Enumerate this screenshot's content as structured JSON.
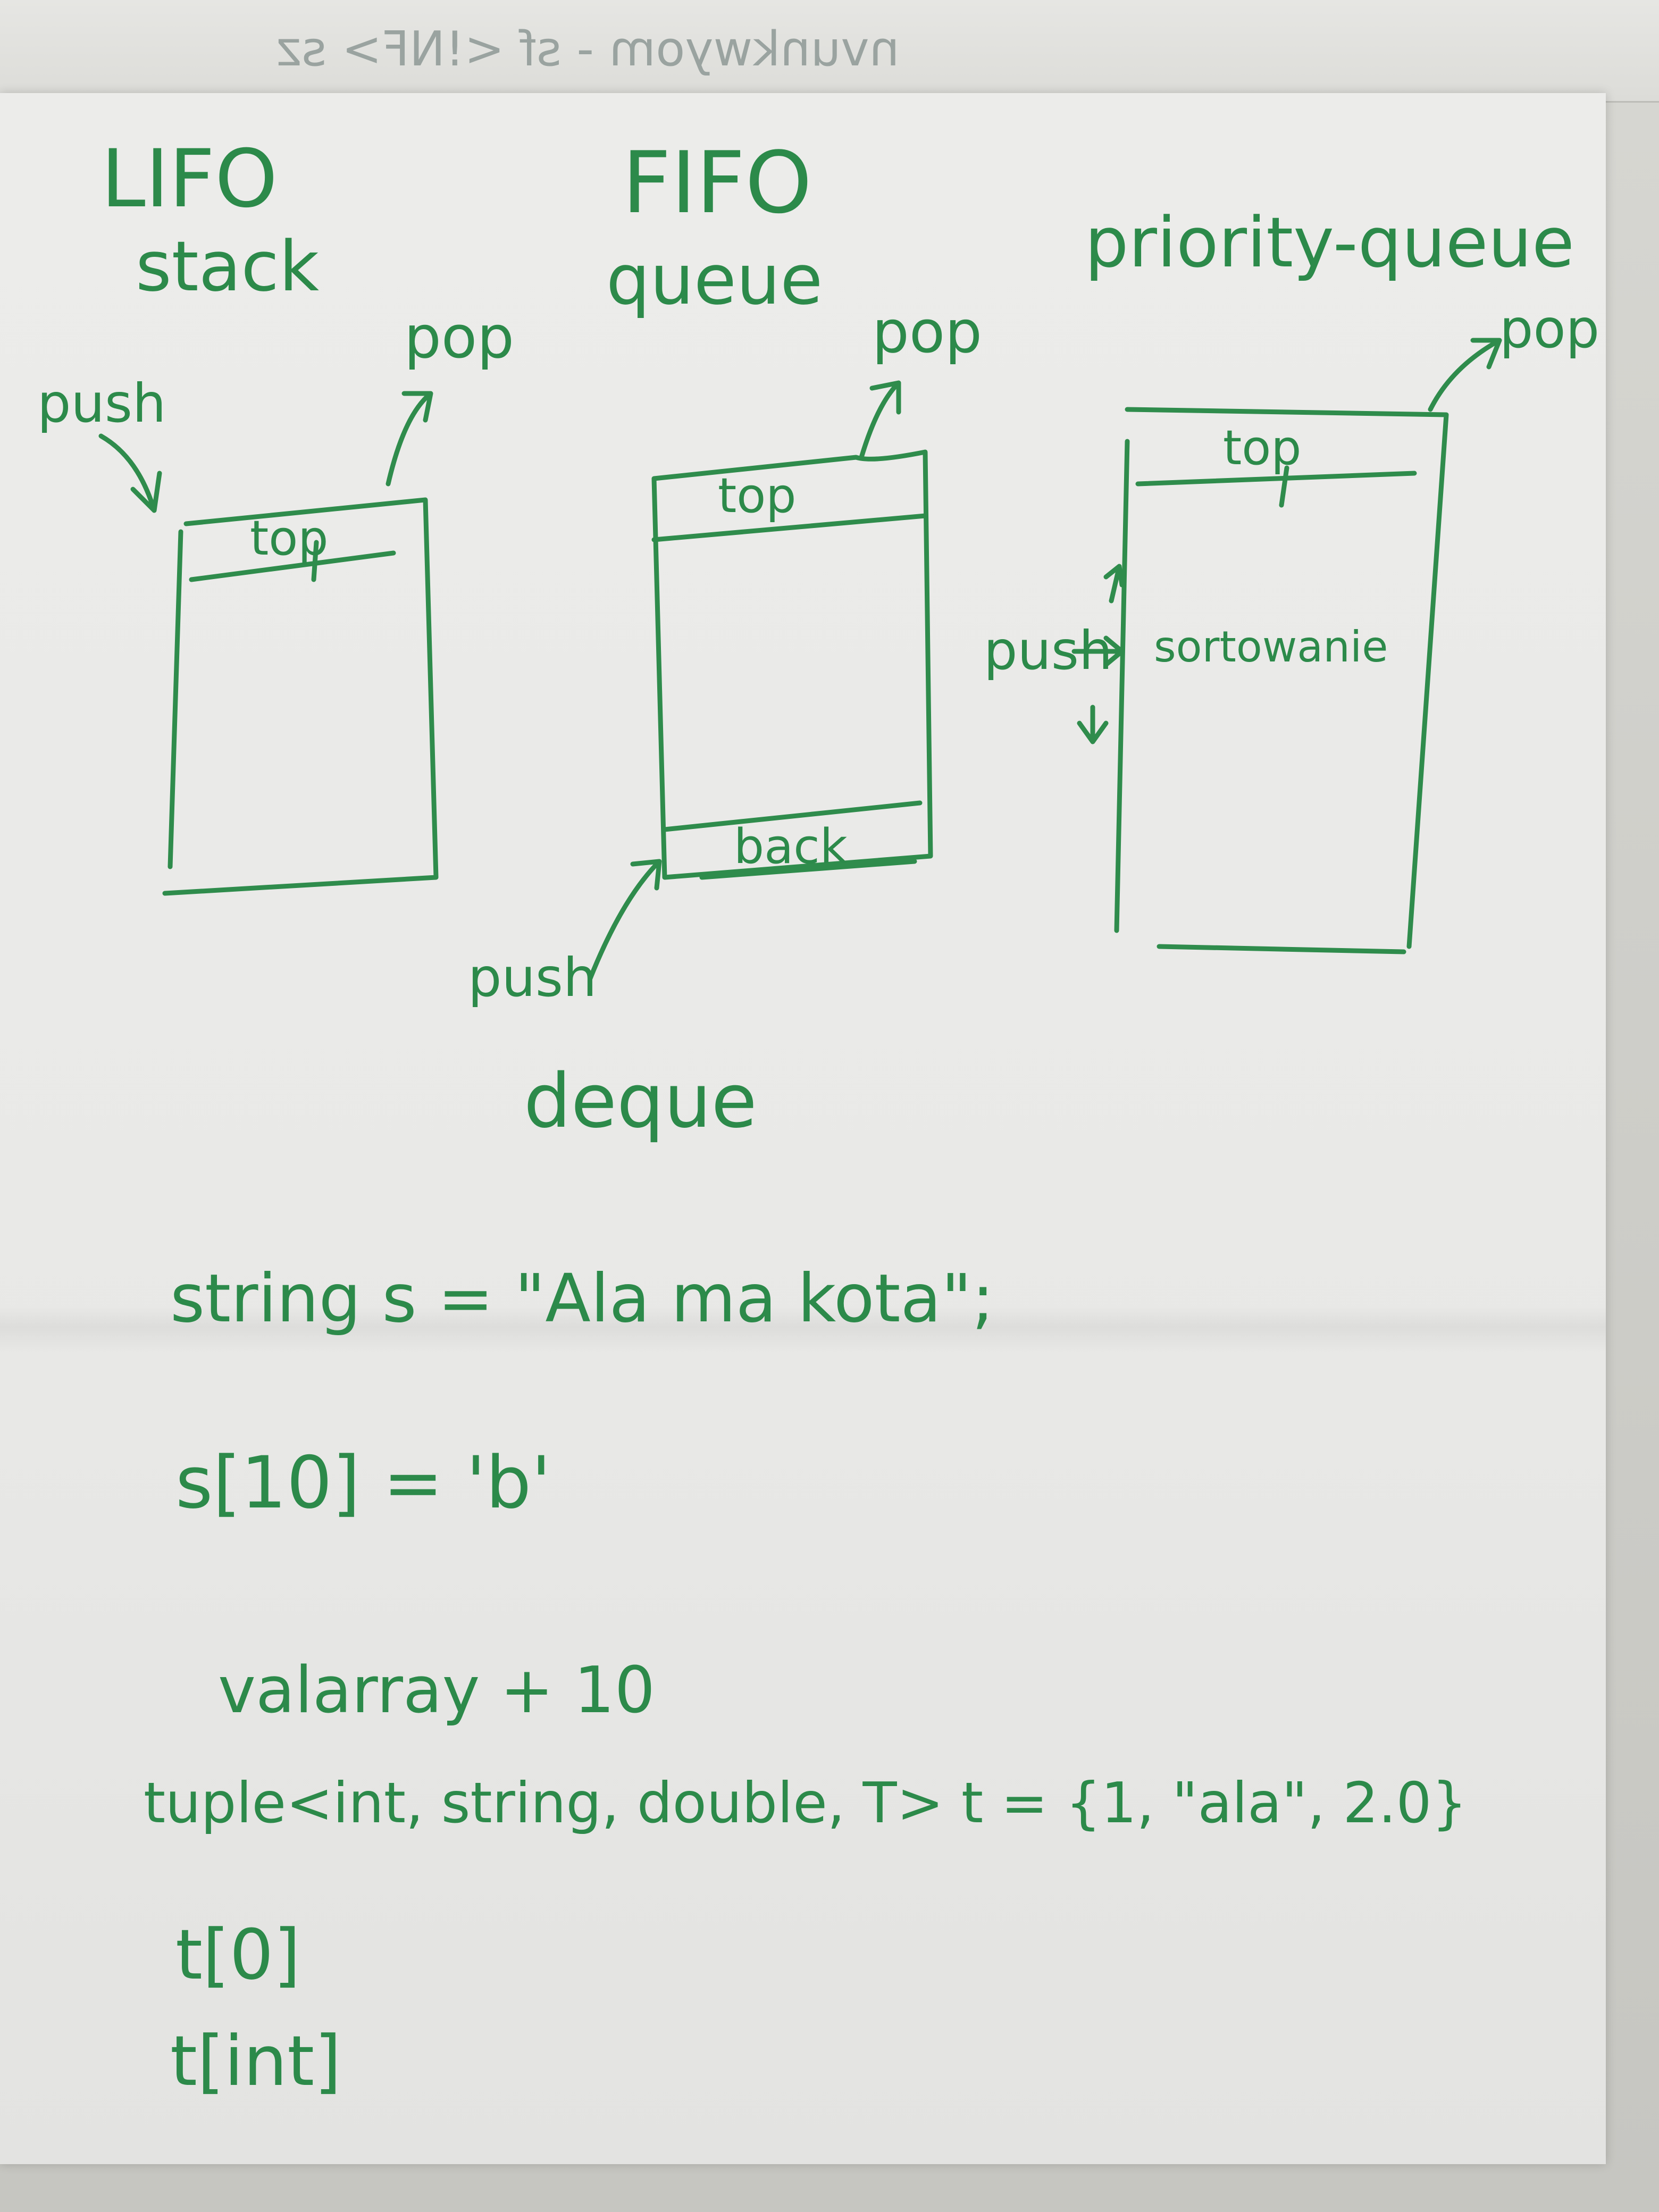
{
  "top_mirror_text": "nvunkwyom - sf <!NF> sz",
  "columns": {
    "stack": {
      "heading": "LIFO",
      "name": "stack",
      "pop": "pop",
      "push": "push",
      "top": "top"
    },
    "queue": {
      "heading": "FIFO",
      "name": "queue",
      "pop": "pop",
      "push": "push",
      "top": "top",
      "back": "back"
    },
    "priority_queue": {
      "name": "priority-queue",
      "pop": "pop",
      "push": "push",
      "top": "top",
      "sorting": "sortowanie"
    }
  },
  "deque": "deque",
  "code_lines": [
    "string s = \"Ala ma kota\";",
    "s[10] = 'b'",
    "valarray + 10",
    "tuple<int, string, double, T> t = {1, \"ala\", 2.0}",
    "t[0]",
    "t[int]"
  ],
  "colors": {
    "ink": "#2f8c4c",
    "paper": "#ebebea"
  }
}
